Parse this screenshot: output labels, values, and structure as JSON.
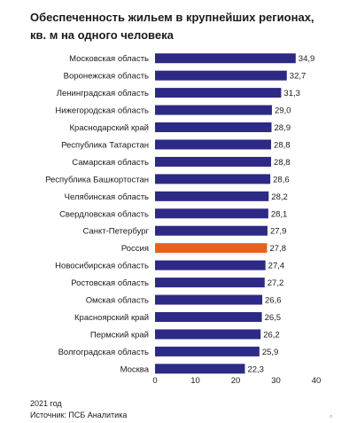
{
  "chart_data": {
    "type": "bar",
    "orientation": "horizontal",
    "title": "Обеспеченность жильем в крупнейших регионах, кв. м на одного человека",
    "title_lines": [
      "Обеспеченность жильем в крупнейших регионах,",
      "кв. м на одного человека"
    ],
    "categories": [
      "Московская область",
      "Воронежская область",
      "Ленинградская область",
      "Нижегородская область",
      "Краснодарский край",
      "Республика Татарстан",
      "Самарская область",
      "Республика Башкортостан",
      "Челябинская область",
      "Свердловская область",
      "Санкт-Петербург",
      "Россия",
      "Новосибирская область",
      "Ростовская область",
      "Омская область",
      "Красноярский край",
      "Пермский край",
      "Волгоградская область",
      "Москва"
    ],
    "values": [
      34.9,
      32.7,
      31.3,
      29.0,
      28.9,
      28.8,
      28.8,
      28.6,
      28.2,
      28.1,
      27.9,
      27.8,
      27.4,
      27.2,
      26.6,
      26.5,
      26.2,
      25.9,
      22.3
    ],
    "value_labels": [
      "34,9",
      "32,7",
      "31,3",
      "29,0",
      "28,9",
      "28,8",
      "28,8",
      "28,6",
      "28,2",
      "28,1",
      "27,9",
      "27,8",
      "27,4",
      "27,2",
      "26,6",
      "26,5",
      "26,2",
      "25,9",
      "22,3"
    ],
    "highlight_category": "Россия",
    "xlim": [
      0,
      40
    ],
    "xticks": [
      0,
      10,
      20,
      30,
      40
    ],
    "xtick_labels": [
      "0",
      "10",
      "20",
      "30",
      "40"
    ],
    "xlabel": "",
    "ylabel": "",
    "grid": false,
    "legend": "none",
    "colors": {
      "bar": "#2c2a85",
      "highlight": "#e8611c",
      "text": "#1a1a1a"
    }
  },
  "footer": {
    "year": "2021 год",
    "source": "Источник: ПСБ Аналитика",
    "corner_mark": "л"
  }
}
